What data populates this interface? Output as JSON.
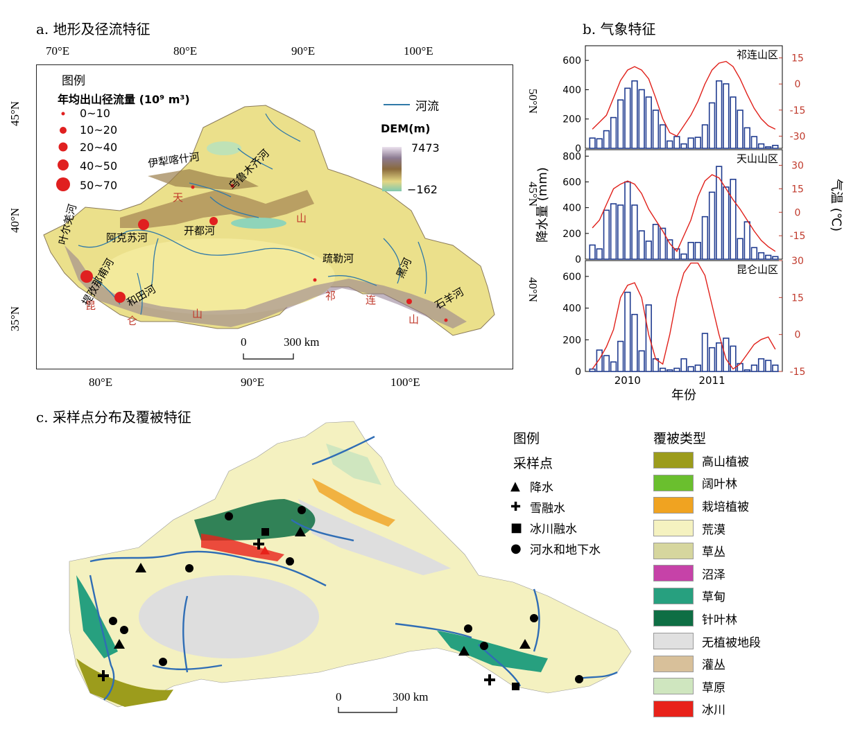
{
  "panel_a": {
    "title": "a. 地形及径流特征",
    "top_lon_ticks": [
      "70°E",
      "80°E",
      "90°E",
      "100°E"
    ],
    "bottom_lon_ticks": [
      "80°E",
      "90°E",
      "100°E"
    ],
    "left_lat_ticks": [
      "45°N",
      "40°N",
      "35°N"
    ],
    "right_lat_ticks": [
      "50°N",
      "45°N",
      "40°N"
    ],
    "legend_title": "图例",
    "runoff_title": "年均出山径流量 (10⁹ m³)",
    "runoff_classes": [
      "0~10",
      "10~20",
      "20~40",
      "40~50",
      "50~70"
    ],
    "river_legend": "河流",
    "dem_title": "DEM(m)",
    "dem_max": "7473",
    "dem_min": "−162",
    "scale_zero": "0",
    "scale_len": "300 km",
    "rivers": [
      "伊犁喀什河",
      "乌鲁木齐河",
      "开都河",
      "阿克苏河",
      "叶尔羌河",
      "提孜那甫河",
      "和田河",
      "疏勒河",
      "黑河",
      "石羊河"
    ],
    "mountain_chars": [
      "天",
      "山",
      "昆",
      "仑",
      "山",
      "祁",
      "连",
      "山"
    ]
  },
  "panel_b": {
    "title": "b. 气象特征",
    "ylabel_left": "降水量 (mm)",
    "ylabel_right": "气温 (℃)",
    "xlabel": "年份",
    "x_ticks": [
      "2010",
      "2011"
    ]
  },
  "chart_data": [
    {
      "type": "bar",
      "title": "祁连山区",
      "x": [
        "2009-08",
        "2009-09",
        "2009-10",
        "2009-11",
        "2009-12",
        "2010-01",
        "2010-02",
        "2010-03",
        "2010-04",
        "2010-05",
        "2010-06",
        "2010-07",
        "2010-08",
        "2010-09",
        "2010-10",
        "2010-11",
        "2010-12",
        "2011-01",
        "2011-02",
        "2011-03",
        "2011-04",
        "2011-05",
        "2011-06",
        "2011-07",
        "2011-08",
        "2011-09",
        "2011-10"
      ],
      "series": [
        {
          "values": [
            70,
            65,
            120,
            210,
            330,
            410,
            460,
            400,
            350,
            260,
            160,
            50,
            80,
            30,
            70,
            75,
            160,
            310,
            460,
            440,
            350,
            260,
            140,
            80,
            30,
            10,
            20
          ]
        }
      ],
      "temperature": [
        -26,
        -22,
        -18,
        -8,
        2,
        8,
        10,
        8,
        3,
        -8,
        -20,
        -28,
        -30,
        -24,
        -18,
        -10,
        0,
        8,
        12,
        13,
        10,
        3,
        -6,
        -14,
        -20,
        -24,
        -26
      ],
      "ylim": [
        0,
        700
      ],
      "y2lim": [
        -37,
        22
      ]
    },
    {
      "type": "bar",
      "title": "天山山区",
      "x": [
        "2009-08",
        "2009-09",
        "2009-10",
        "2009-11",
        "2009-12",
        "2010-01",
        "2010-02",
        "2010-03",
        "2010-04",
        "2010-05",
        "2010-06",
        "2010-07",
        "2010-08",
        "2010-09",
        "2010-10",
        "2010-11",
        "2010-12",
        "2011-01",
        "2011-02",
        "2011-03",
        "2011-04",
        "2011-05",
        "2011-06",
        "2011-07",
        "2011-08",
        "2011-09",
        "2011-10"
      ],
      "series": [
        {
          "values": [
            110,
            80,
            380,
            430,
            420,
            600,
            420,
            220,
            140,
            270,
            240,
            150,
            80,
            40,
            130,
            130,
            330,
            520,
            720,
            560,
            620,
            160,
            290,
            90,
            50,
            30,
            20
          ]
        }
      ],
      "temperature": [
        -10,
        -5,
        5,
        15,
        18,
        20,
        18,
        12,
        2,
        -5,
        -12,
        -20,
        -25,
        -15,
        -5,
        10,
        20,
        24,
        22,
        15,
        8,
        2,
        -5,
        -12,
        -18,
        -22,
        -25
      ],
      "ylim": [
        0,
        850
      ],
      "y2lim": [
        -30,
        40
      ]
    },
    {
      "type": "bar",
      "title": "昆仑山区",
      "x": [
        "2009-08",
        "2009-09",
        "2009-10",
        "2009-11",
        "2009-12",
        "2010-01",
        "2010-02",
        "2010-03",
        "2010-04",
        "2010-05",
        "2010-06",
        "2010-07",
        "2010-08",
        "2010-09",
        "2010-10",
        "2010-11",
        "2010-12",
        "2011-01",
        "2011-02",
        "2011-03",
        "2011-04",
        "2011-05",
        "2011-06",
        "2011-07",
        "2011-08",
        "2011-09",
        "2011-10"
      ],
      "series": [
        {
          "values": [
            15,
            135,
            100,
            60,
            190,
            500,
            360,
            130,
            420,
            80,
            20,
            10,
            20,
            80,
            30,
            40,
            240,
            150,
            180,
            210,
            160,
            50,
            10,
            40,
            80,
            70,
            40
          ]
        }
      ],
      "temperature": [
        -14,
        -10,
        -5,
        2,
        15,
        20,
        21,
        15,
        0,
        -10,
        -12,
        0,
        15,
        25,
        29,
        29,
        24,
        12,
        0,
        -10,
        -14,
        -12,
        -8,
        -4,
        -2,
        -1,
        -6
      ],
      "ylim": [
        0,
        700
      ],
      "y2lim": [
        -15,
        30
      ]
    }
  ],
  "panel_c": {
    "title": "c. 采样点分布及覆被特征",
    "legend_title": "图例",
    "sample_title": "采样点",
    "sample_types": [
      {
        "symbol": "▲",
        "label": "降水"
      },
      {
        "symbol": "✚",
        "label": "雪融水"
      },
      {
        "symbol": "■",
        "label": "冰川融水"
      },
      {
        "symbol": "●",
        "label": "河水和地下水"
      }
    ],
    "cover_title": "覆被类型",
    "cover_types": [
      {
        "label": "高山植被",
        "color": "#9c9c1c"
      },
      {
        "label": "阔叶林",
        "color": "#6abf2e"
      },
      {
        "label": "栽培植被",
        "color": "#f0a321"
      },
      {
        "label": "荒漠",
        "color": "#f5f2c0"
      },
      {
        "label": "草丛",
        "color": "#d6d69e"
      },
      {
        "label": "沼泽",
        "color": "#c642a8"
      },
      {
        "label": "草甸",
        "color": "#27a07f"
      },
      {
        "label": "针叶林",
        "color": "#0e6e44"
      },
      {
        "label": "无植被地段",
        "color": "#e0e0e0"
      },
      {
        "label": "灌丛",
        "color": "#d8c09a"
      },
      {
        "label": "草原",
        "color": "#cfe6bf"
      },
      {
        "label": "冰川",
        "color": "#e8221a"
      }
    ],
    "scale_zero": "0",
    "scale_len": "300 km"
  },
  "colors": {
    "river": "#2f6db5",
    "runoff_dot": "#e02020",
    "bar_edge": "#1f3b8f",
    "temp_line": "#e0201a"
  }
}
